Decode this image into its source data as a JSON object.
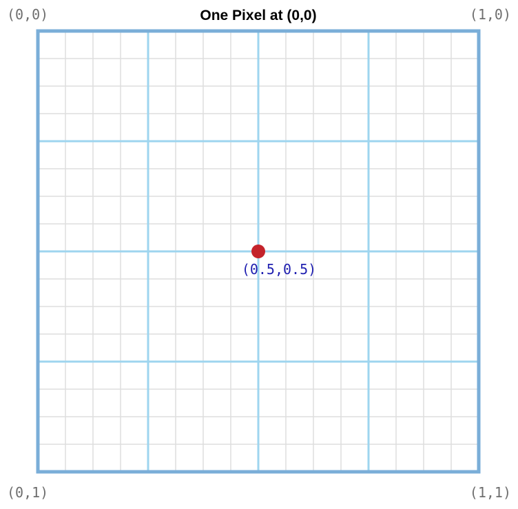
{
  "header": {
    "title": "One Pixel at (0,0)"
  },
  "corners": {
    "top_left": "(0,0)",
    "top_right": "(1,0)",
    "bottom_left": "(0,1)",
    "bottom_right": "(1,1)"
  },
  "center_point": {
    "label": "(0.5,0.5)"
  }
}
